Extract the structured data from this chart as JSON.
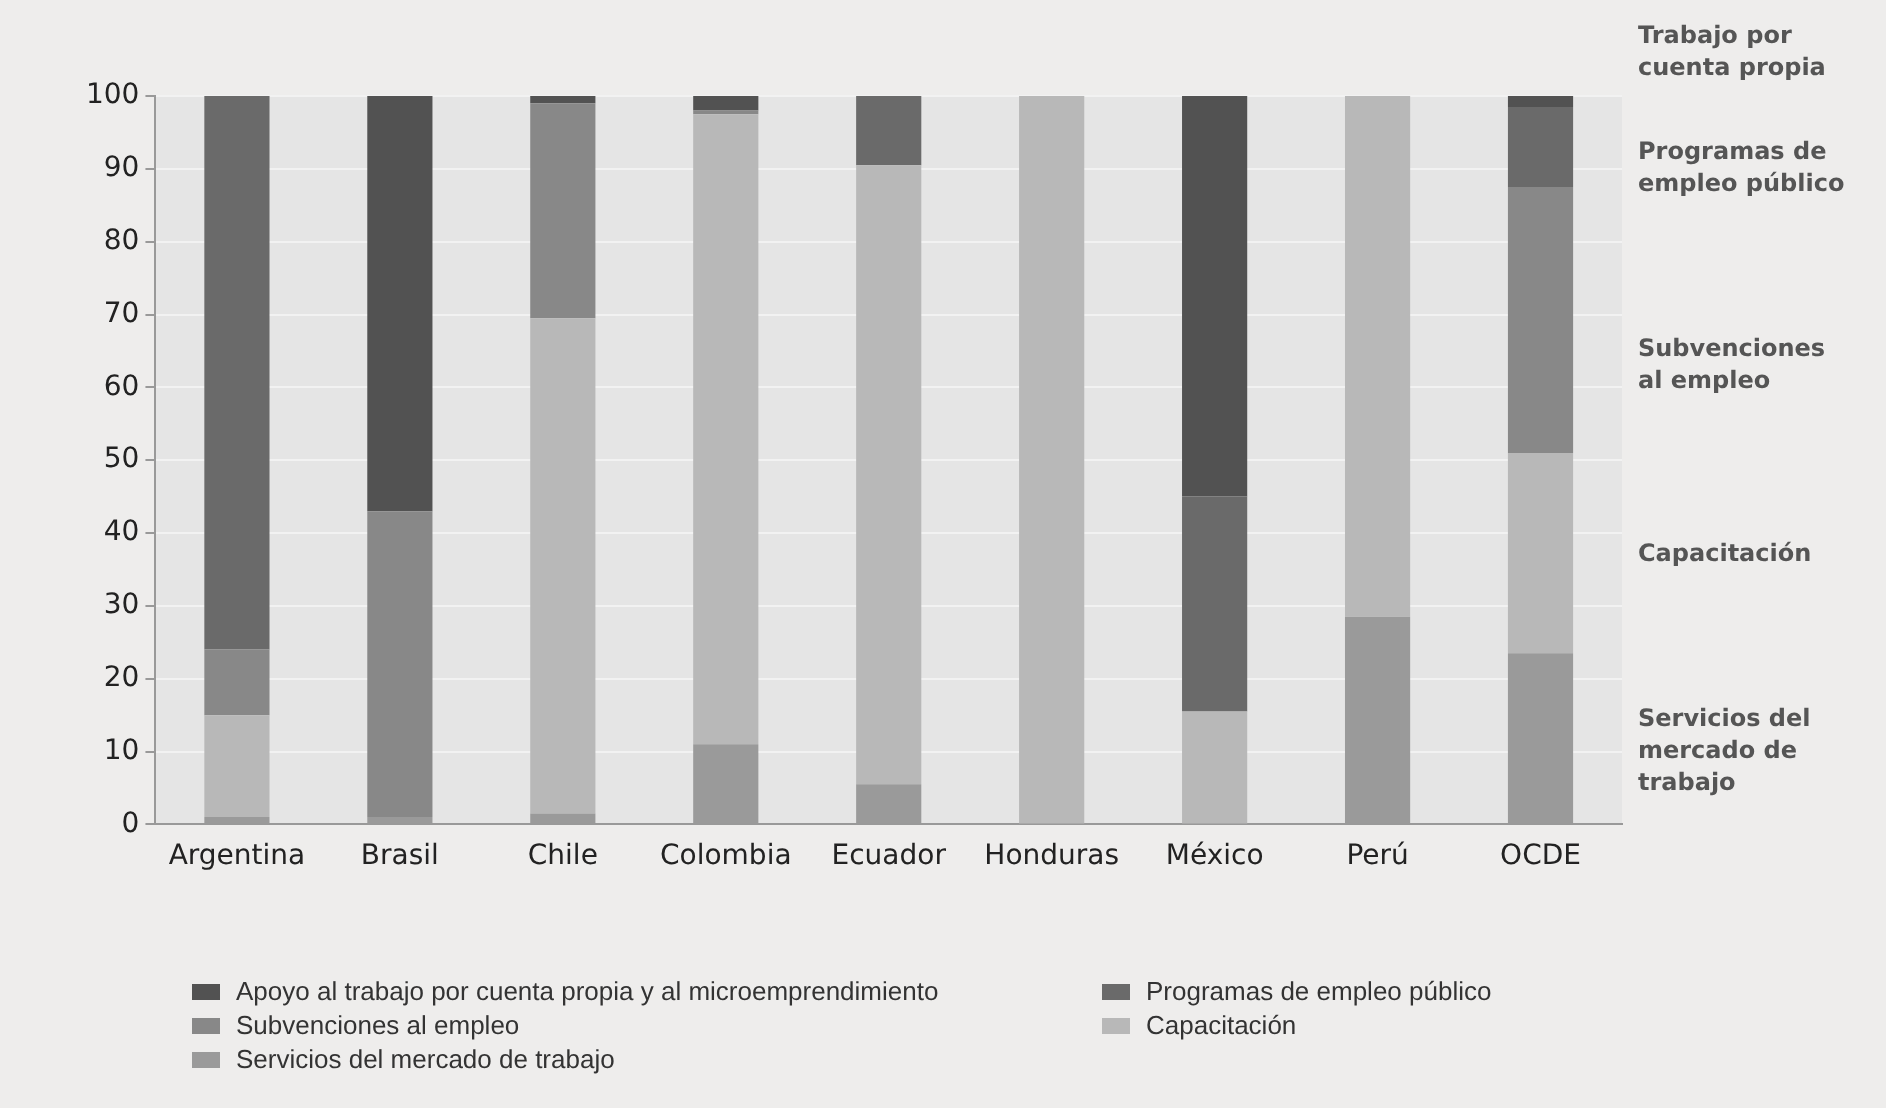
{
  "chart_data": {
    "type": "bar",
    "stacked": true,
    "categories": [
      "Argentina",
      "Brasil",
      "Chile",
      "Colombia",
      "Ecuador",
      "Honduras",
      "México",
      "Perú",
      "OCDE"
    ],
    "series": [
      {
        "name": "Servicios del mercado de trabajo",
        "color": "#9a9a9a",
        "values": [
          1,
          1,
          1.5,
          11,
          5.5,
          0,
          0,
          28.5,
          23.5
        ]
      },
      {
        "name": "Capacitación",
        "color": "#b8b8b8",
        "values": [
          14,
          0,
          68,
          86.5,
          85,
          100,
          15.5,
          71.5,
          27.5
        ]
      },
      {
        "name": "Subvenciones al empleo",
        "color": "#888888",
        "values": [
          9,
          42,
          29.5,
          0.5,
          0,
          0,
          0,
          0,
          36.5
        ]
      },
      {
        "name": "Programas de empleo público",
        "color": "#6a6a6a",
        "values": [
          76,
          0,
          0,
          0,
          9.5,
          0,
          29.5,
          0,
          11
        ]
      },
      {
        "name": "Apoyo al trabajo por cuenta propia y al microemprendimiento",
        "color": "#525252",
        "values": [
          0,
          57,
          1,
          2,
          0,
          0,
          55,
          0,
          1.5
        ]
      }
    ],
    "ylim": [
      0,
      100
    ],
    "yticks": [
      0,
      10,
      20,
      30,
      40,
      50,
      60,
      70,
      80,
      90,
      100
    ],
    "grid": "y",
    "legend": "bottom",
    "annotations": [
      "Trabajo por cuenta propia",
      "Programas de empleo público",
      "Subvenciones al empleo",
      "Capacitación",
      "Servicios del mercado de trabajo"
    ]
  }
}
